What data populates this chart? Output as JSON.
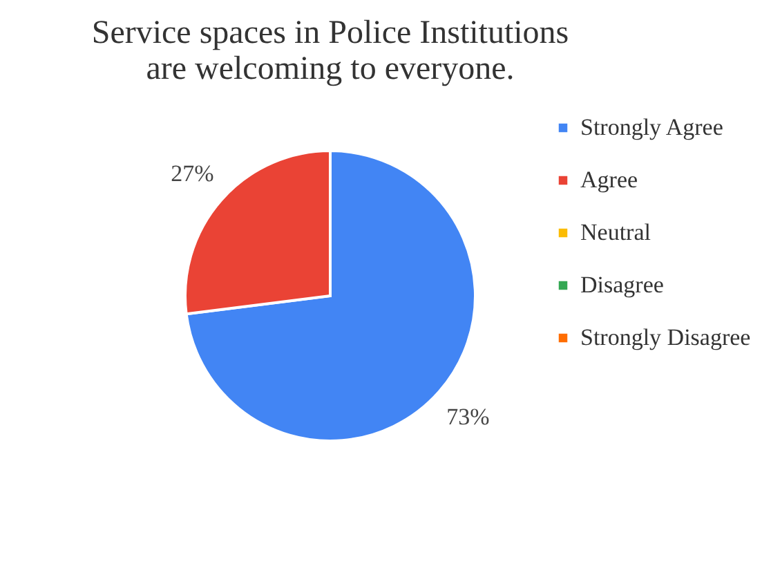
{
  "chart_data": {
    "type": "pie",
    "title": "Service spaces in Police Institutions\nare welcoming to everyone.",
    "categories": [
      "Strongly Agree",
      "Agree",
      "Neutral",
      "Disagree",
      "Strongly Disagree"
    ],
    "values": [
      73,
      27,
      0,
      0,
      0
    ],
    "colors": [
      "#4285f4",
      "#ea4335",
      "#fbbc04",
      "#34a853",
      "#ff6d01"
    ],
    "value_labels": [
      "73%",
      "27%",
      null,
      null,
      null
    ],
    "legend": "right"
  }
}
